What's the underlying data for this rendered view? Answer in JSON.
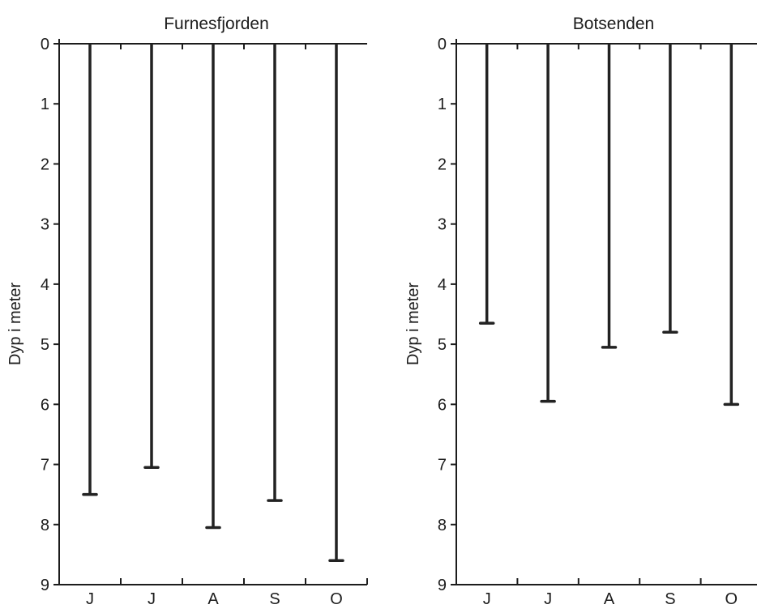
{
  "chart_data": [
    {
      "type": "bar",
      "title": "Furnesfjorden",
      "ylabel": "Dyp i meter",
      "xlabel": "",
      "categories": [
        "J",
        "J",
        "A",
        "S",
        "O"
      ],
      "values": [
        7.5,
        7.05,
        8.05,
        7.6,
        8.6
      ],
      "ylim": [
        0,
        9
      ],
      "y_inverted": true,
      "y_ticks": [
        "0",
        "1",
        "2",
        "3",
        "4",
        "5",
        "6",
        "7",
        "8",
        "9"
      ],
      "grid": false,
      "legend": "none"
    },
    {
      "type": "bar",
      "title": "Botsenden",
      "ylabel": "Dyp i meter",
      "xlabel": "",
      "categories": [
        "J",
        "J",
        "A",
        "S",
        "O"
      ],
      "values": [
        4.65,
        5.95,
        5.05,
        4.8,
        6.0
      ],
      "ylim": [
        0,
        9
      ],
      "y_inverted": true,
      "y_ticks": [
        "0",
        "1",
        "2",
        "3",
        "4",
        "5",
        "6",
        "7",
        "8",
        "9"
      ],
      "grid": false,
      "legend": "none"
    }
  ]
}
